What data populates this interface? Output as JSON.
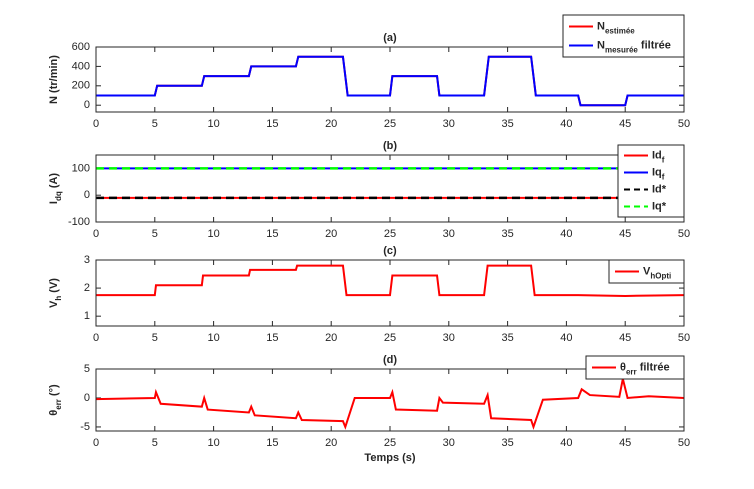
{
  "chart_data": [
    {
      "type": "line",
      "title": "(a)",
      "ylabel": [
        {
          "text": "N (tr/min)"
        }
      ],
      "xlim": [
        0,
        50
      ],
      "xticks": [
        0,
        5,
        10,
        15,
        20,
        25,
        30,
        35,
        40,
        45,
        50
      ],
      "ylim": [
        -70,
        600
      ],
      "yticks": [
        0,
        200,
        400,
        600
      ],
      "legend": "upper right",
      "x": [
        0,
        5,
        5.2,
        9,
        9.2,
        13,
        13.2,
        17,
        17.2,
        21,
        21.4,
        25,
        25.2,
        29,
        29.2,
        33,
        33.4,
        37,
        37.4,
        41,
        41.2,
        45,
        45.2,
        50
      ],
      "series": [
        {
          "name": [
            {
              "text": "N"
            },
            {
              "text": "estimée",
              "sub": true
            }
          ],
          "color": "#ff0000",
          "values": [
            100,
            100,
            200,
            200,
            300,
            300,
            400,
            400,
            500,
            500,
            100,
            100,
            300,
            300,
            100,
            100,
            500,
            500,
            100,
            100,
            0,
            0,
            100,
            100
          ]
        },
        {
          "name": [
            {
              "text": "N"
            },
            {
              "text": "mesurée",
              "sub": true
            },
            {
              "text": " filtrée"
            }
          ],
          "color": "#0000ff",
          "values": [
            100,
            100,
            200,
            200,
            300,
            300,
            400,
            400,
            500,
            500,
            100,
            100,
            300,
            300,
            100,
            100,
            500,
            500,
            100,
            100,
            0,
            0,
            100,
            100
          ]
        }
      ]
    },
    {
      "type": "line",
      "title": "(b)",
      "ylabel": [
        {
          "text": "I"
        },
        {
          "text": "dq",
          "sub": true
        },
        {
          "text": " (A)"
        }
      ],
      "xlim": [
        0,
        50
      ],
      "xticks": [
        0,
        5,
        10,
        15,
        20,
        25,
        30,
        35,
        40,
        45,
        50
      ],
      "ylim": [
        -100,
        150
      ],
      "yticks": [
        -100,
        0,
        100
      ],
      "legend": "upper right",
      "x": [
        0,
        50
      ],
      "series": [
        {
          "name": [
            {
              "text": "Id"
            },
            {
              "text": "f",
              "sub": true
            }
          ],
          "color": "#ff0000",
          "values": [
            -10,
            -10
          ]
        },
        {
          "name": [
            {
              "text": "Iq"
            },
            {
              "text": "f",
              "sub": true
            }
          ],
          "color": "#0000ff",
          "values": [
            100,
            100
          ]
        },
        {
          "name": [
            {
              "text": "Id*"
            }
          ],
          "color": "#000000",
          "dashed": true,
          "values": [
            -10,
            -10
          ]
        },
        {
          "name": [
            {
              "text": "Iq*"
            }
          ],
          "color": "#00ff00",
          "dashed": true,
          "values": [
            100,
            100
          ]
        }
      ]
    },
    {
      "type": "line",
      "title": "(c)",
      "ylabel": [
        {
          "text": "V"
        },
        {
          "text": "h",
          "sub": true
        },
        {
          "text": " (V)"
        }
      ],
      "xlim": [
        0,
        50
      ],
      "xticks": [
        0,
        5,
        10,
        15,
        20,
        25,
        30,
        35,
        40,
        45,
        50
      ],
      "ylim": [
        0.65,
        3
      ],
      "yticks": [
        1,
        2,
        3
      ],
      "legend": "upper right",
      "x": [
        0,
        5,
        5.1,
        9,
        9.1,
        13,
        13.1,
        17,
        17.1,
        21,
        21.3,
        25,
        25.2,
        29,
        29.2,
        33,
        33.3,
        37,
        37.3,
        41,
        45,
        50
      ],
      "series": [
        {
          "name": [
            {
              "text": "V"
            },
            {
              "text": "hOpti",
              "sub": true
            }
          ],
          "color": "#ff0000",
          "values": [
            1.75,
            1.75,
            2.1,
            2.1,
            2.45,
            2.45,
            2.65,
            2.65,
            2.8,
            2.8,
            1.75,
            1.75,
            2.45,
            2.45,
            1.75,
            1.75,
            2.8,
            2.8,
            1.75,
            1.75,
            1.72,
            1.75
          ]
        }
      ]
    },
    {
      "type": "line",
      "title": "(d)",
      "ylabel": [
        {
          "text": "θ"
        },
        {
          "text": "err",
          "sub": true
        },
        {
          "text": " (°)"
        }
      ],
      "xlabel": "Temps (s)",
      "xlim": [
        0,
        50
      ],
      "xticks": [
        0,
        5,
        10,
        15,
        20,
        25,
        30,
        35,
        40,
        45,
        50
      ],
      "ylim": [
        -5.7,
        5
      ],
      "yticks": [
        -5,
        0,
        5
      ],
      "legend": "upper right",
      "x": [
        0,
        5,
        5.1,
        5.5,
        9,
        9.2,
        9.5,
        13,
        13.2,
        13.5,
        17,
        17.2,
        17.5,
        21,
        21.2,
        22,
        25,
        25.2,
        25.5,
        29,
        29.2,
        29.5,
        33,
        33.3,
        33.6,
        37,
        37.2,
        38,
        41,
        41.3,
        42,
        44.5,
        44.8,
        45.2,
        47,
        50
      ],
      "series": [
        {
          "name": [
            {
              "text": "θ"
            },
            {
              "text": "err",
              "sub": true
            },
            {
              "text": " filtrée"
            }
          ],
          "color": "#ff0000",
          "values": [
            -0.2,
            0,
            1,
            -1,
            -1.5,
            0,
            -2,
            -2.5,
            -1.5,
            -3,
            -3.5,
            -2.5,
            -3.8,
            -4,
            -5,
            0,
            0,
            1,
            -2,
            -2.2,
            0,
            -0.8,
            -1,
            0.5,
            -3.5,
            -3.8,
            -5,
            -0.3,
            0,
            1.5,
            0.5,
            0.2,
            3.3,
            0,
            0.3,
            0
          ]
        }
      ]
    }
  ]
}
